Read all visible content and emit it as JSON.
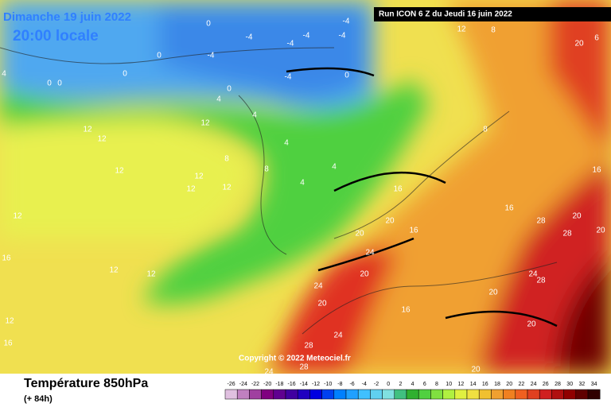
{
  "header": {
    "date": "Dimanche 19 juin 2022",
    "time": "20:00 locale",
    "run": "Run ICON 6 Z du Jeudi 16 juin 2022"
  },
  "map": {
    "copyright": "Copyright © 2022 Meteociel.fr",
    "contour_labels": [
      4,
      0,
      0,
      0,
      0,
      0,
      -4,
      -4,
      -4,
      -4,
      -4,
      -4,
      -4,
      0,
      0,
      4,
      4,
      4,
      4,
      4,
      8,
      8,
      12,
      12,
      12,
      12,
      12,
      12,
      12,
      12,
      16,
      12,
      12,
      12,
      16,
      12,
      8,
      8,
      16,
      20,
      20,
      24,
      20,
      16,
      24,
      20,
      24,
      28,
      28,
      16,
      28,
      28,
      24,
      28,
      20,
      20,
      20,
      16,
      20,
      20,
      6,
      20,
      16,
      24
    ]
  },
  "footer": {
    "title": "Température 850hPa",
    "lead": "(+ 84h)"
  },
  "colorbar": {
    "ticks": [
      -26,
      -24,
      -22,
      -20,
      -18,
      -16,
      -14,
      -12,
      -10,
      -8,
      -6,
      -4,
      -2,
      0,
      2,
      4,
      6,
      8,
      10,
      12,
      14,
      16,
      18,
      20,
      22,
      24,
      26,
      28,
      30,
      32,
      34
    ],
    "colors": [
      "#e0c0e0",
      "#c080c0",
      "#a040a0",
      "#800080",
      "#600090",
      "#4000a0",
      "#2000c0",
      "#0000e0",
      "#0040f0",
      "#0080ff",
      "#20a0ff",
      "#40c0ff",
      "#60d0f0",
      "#80e0e0",
      "#40c080",
      "#30b030",
      "#50d040",
      "#80e040",
      "#b0f040",
      "#e0f040",
      "#f0e040",
      "#f0c030",
      "#f0a030",
      "#f08020",
      "#f06020",
      "#e04020",
      "#d02020",
      "#b01010",
      "#900000",
      "#600000",
      "#300000"
    ]
  }
}
